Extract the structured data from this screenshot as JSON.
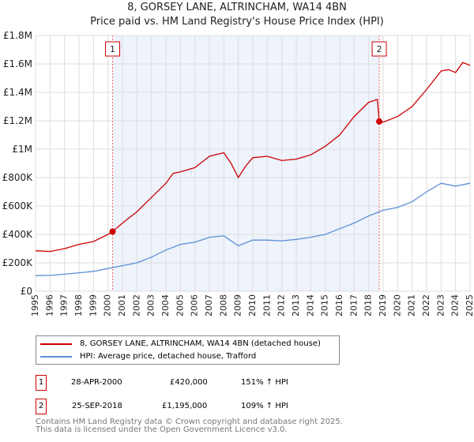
{
  "chart_data": {
    "type": "line",
    "title": "8, GORSEY LANE, ALTRINCHAM, WA14 4BN",
    "subtitle": "Price paid vs. HM Land Registry's House Price Index (HPI)",
    "xlim": [
      1995,
      2025
    ],
    "ylim": [
      0,
      1800000
    ],
    "x_ticks": [
      "1995",
      "1996",
      "1997",
      "1998",
      "1999",
      "2000",
      "2001",
      "2002",
      "2003",
      "2004",
      "2005",
      "2006",
      "2007",
      "2008",
      "2009",
      "2010",
      "2011",
      "2012",
      "2013",
      "2014",
      "2015",
      "2016",
      "2017",
      "2018",
      "2019",
      "2020",
      "2021",
      "2022",
      "2023",
      "2024",
      "2025"
    ],
    "y_ticks": [
      {
        "v": 0,
        "l": "£0"
      },
      {
        "v": 200000,
        "l": "£200K"
      },
      {
        "v": 400000,
        "l": "£400K"
      },
      {
        "v": 600000,
        "l": "£600K"
      },
      {
        "v": 800000,
        "l": "£800K"
      },
      {
        "v": 1000000,
        "l": "£1M"
      },
      {
        "v": 1200000,
        "l": "£1.2M"
      },
      {
        "v": 1400000,
        "l": "£1.4M"
      },
      {
        "v": 1600000,
        "l": "£1.6M"
      },
      {
        "v": 1800000,
        "l": "£1.8M"
      }
    ],
    "grid": true,
    "shaded_range": [
      2000.32,
      2018.73
    ],
    "series": [
      {
        "name": "8, GORSEY LANE, ALTRINCHAM, WA14 4BN (detached house)",
        "color": "#cc0000",
        "x": [
          1995,
          1996,
          1997,
          1998,
          1999,
          2000,
          2000.32,
          2001,
          2002,
          2003,
          2004,
          2004.5,
          2005,
          2006,
          2007,
          2008,
          2008.5,
          2009,
          2009.5,
          2010,
          2011,
          2012,
          2013,
          2014,
          2015,
          2016,
          2017,
          2018,
          2018.6,
          2018.73,
          2019,
          2020,
          2021,
          2022,
          2023,
          2023.5,
          2024,
          2024.5,
          2025
        ],
        "y": [
          285000,
          280000,
          300000,
          330000,
          350000,
          400000,
          420000,
          480000,
          560000,
          660000,
          760000,
          830000,
          840000,
          870000,
          950000,
          975000,
          900000,
          800000,
          880000,
          940000,
          950000,
          920000,
          930000,
          960000,
          1020000,
          1100000,
          1230000,
          1330000,
          1350000,
          1195000,
          1190000,
          1230000,
          1300000,
          1420000,
          1550000,
          1560000,
          1540000,
          1610000,
          1590000
        ]
      },
      {
        "name": "HPI: Average price, detached house, Trafford",
        "color": "#5b8fd6",
        "x": [
          1995,
          1996,
          1997,
          1998,
          1999,
          2000,
          2001,
          2002,
          2003,
          2004,
          2005,
          2006,
          2007,
          2008,
          2009,
          2010,
          2011,
          2012,
          2013,
          2014,
          2015,
          2016,
          2017,
          2018,
          2019,
          2020,
          2021,
          2022,
          2023,
          2024,
          2025
        ],
        "y": [
          110000,
          112000,
          120000,
          130000,
          140000,
          160000,
          180000,
          200000,
          240000,
          290000,
          330000,
          345000,
          380000,
          390000,
          320000,
          360000,
          360000,
          355000,
          365000,
          380000,
          400000,
          440000,
          480000,
          530000,
          570000,
          590000,
          630000,
          700000,
          760000,
          740000,
          760000
        ]
      }
    ],
    "sales": [
      {
        "label": "1",
        "x": 2000.32,
        "y": 420000
      },
      {
        "label": "2",
        "x": 2018.73,
        "y": 1195000
      }
    ]
  },
  "table": [
    {
      "num": "1",
      "date": "28-APR-2000",
      "price": "£420,000",
      "hpi": "151% ↑ HPI"
    },
    {
      "num": "2",
      "date": "25-SEP-2018",
      "price": "£1,195,000",
      "hpi": "109% ↑ HPI"
    }
  ],
  "footer": [
    "Contains HM Land Registry data © Crown copyright and database right 2025.",
    "This data is licensed under the Open Government Licence v3.0."
  ]
}
